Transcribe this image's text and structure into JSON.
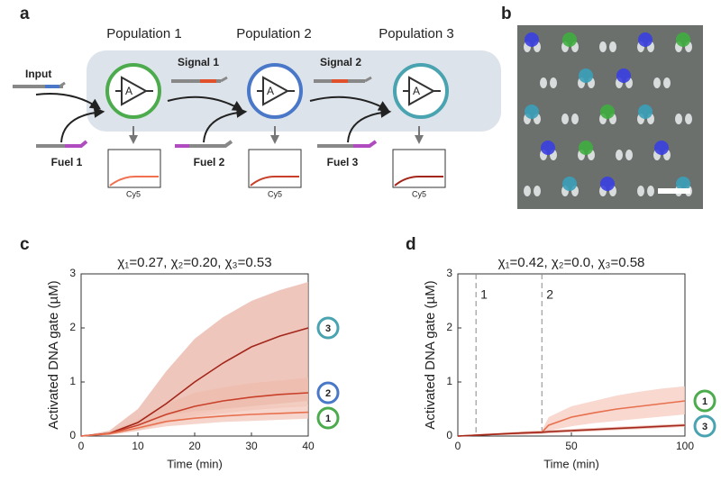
{
  "panels": [
    "a",
    "b",
    "c",
    "d"
  ],
  "diagram": {
    "populations": [
      "Population 1",
      "Population 2",
      "Population 3"
    ],
    "amplifier": "A",
    "input": "Input",
    "signals": [
      "Signal 1",
      "Signal 2"
    ],
    "fuels": [
      "Fuel 1",
      "Fuel 2",
      "Fuel 3"
    ],
    "readout": "Cy5"
  },
  "chart_data": [
    {
      "type": "line",
      "title": "χ₁=0.27, χ₂=0.20, χ₃=0.53",
      "xlabel": "Time (min)",
      "ylabel": "Activated DNA gate (µM)",
      "x": [
        0,
        5,
        10,
        15,
        20,
        25,
        30,
        35,
        40
      ],
      "xlim": [
        0,
        40
      ],
      "xticks": [
        0,
        10,
        20,
        30,
        40
      ],
      "ylim": [
        0,
        3
      ],
      "yticks": [
        0,
        1,
        2,
        3
      ],
      "series": [
        {
          "name": "3",
          "color": "#a3261b",
          "band_color": "#e9b3a6",
          "ring_color": "#4aa3b0",
          "values": [
            0,
            0.05,
            0.25,
            0.6,
            1.0,
            1.35,
            1.65,
            1.85,
            2.0
          ],
          "upper": [
            0,
            0.1,
            0.5,
            1.2,
            1.8,
            2.2,
            2.5,
            2.7,
            2.85
          ],
          "lower": [
            0,
            0.02,
            0.1,
            0.25,
            0.4,
            0.5,
            0.55,
            0.6,
            0.65
          ]
        },
        {
          "name": "2",
          "color": "#c9402a",
          "band_color": "#eebcae",
          "ring_color": "#4a78c8",
          "values": [
            0,
            0.05,
            0.2,
            0.4,
            0.55,
            0.65,
            0.72,
            0.77,
            0.8
          ],
          "upper": [
            0,
            0.08,
            0.3,
            0.6,
            0.8,
            0.9,
            0.98,
            1.03,
            1.08
          ],
          "lower": [
            0,
            0.03,
            0.12,
            0.25,
            0.35,
            0.42,
            0.48,
            0.52,
            0.55
          ]
        },
        {
          "name": "1",
          "color": "#e8704f",
          "band_color": "#f3c8bb",
          "ring_color": "#4cab4c",
          "values": [
            0,
            0.04,
            0.15,
            0.27,
            0.33,
            0.37,
            0.4,
            0.42,
            0.44
          ],
          "upper": [
            0,
            0.06,
            0.22,
            0.38,
            0.46,
            0.5,
            0.54,
            0.56,
            0.58
          ],
          "lower": [
            0,
            0.02,
            0.1,
            0.18,
            0.22,
            0.26,
            0.28,
            0.3,
            0.32
          ]
        }
      ]
    },
    {
      "type": "line",
      "title": "χ₁=0.42, χ₂=0.0, χ₃=0.58",
      "xlabel": "Time (min)",
      "ylabel": "Activated DNA gate (µM)",
      "x": [
        0,
        10,
        20,
        30,
        37,
        40,
        50,
        60,
        70,
        80,
        90,
        100
      ],
      "xlim": [
        0,
        100
      ],
      "xticks": [
        0,
        50,
        100
      ],
      "ylim": [
        0,
        3
      ],
      "yticks": [
        0,
        1,
        2,
        3
      ],
      "markers": [
        {
          "x": 8,
          "label": "1"
        },
        {
          "x": 37,
          "label": "2"
        }
      ],
      "series": [
        {
          "name": "1",
          "color": "#e8704f",
          "band_color": "#f5cbbf",
          "ring_color": "#4cab4c",
          "values": [
            0,
            0.02,
            0.04,
            0.06,
            0.07,
            0.2,
            0.35,
            0.43,
            0.5,
            0.55,
            0.6,
            0.65
          ],
          "upper": [
            0,
            0.03,
            0.06,
            0.08,
            0.1,
            0.35,
            0.55,
            0.65,
            0.75,
            0.82,
            0.88,
            0.92
          ],
          "lower": [
            0,
            0.01,
            0.02,
            0.04,
            0.05,
            0.1,
            0.18,
            0.24,
            0.28,
            0.32,
            0.36,
            0.4
          ]
        },
        {
          "name": "3",
          "color": "#a3261b",
          "band_color": "#e9b3a6",
          "ring_color": "#4aa3b0",
          "values": [
            0,
            0.02,
            0.04,
            0.06,
            0.07,
            0.08,
            0.1,
            0.12,
            0.14,
            0.16,
            0.18,
            0.2
          ],
          "upper": [
            0,
            0.04,
            0.06,
            0.09,
            0.1,
            0.11,
            0.13,
            0.15,
            0.17,
            0.19,
            0.21,
            0.23
          ],
          "lower": [
            0,
            0.01,
            0.02,
            0.03,
            0.04,
            0.05,
            0.07,
            0.09,
            0.11,
            0.13,
            0.15,
            0.17
          ]
        }
      ]
    }
  ]
}
